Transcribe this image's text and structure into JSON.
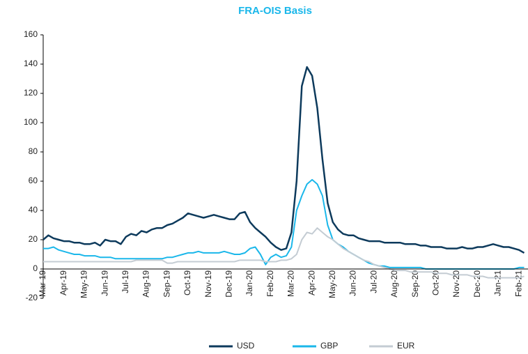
{
  "chart_data": {
    "type": "line",
    "title": "FRA-OIS Basis",
    "categories": [
      "Mar-19",
      null,
      null,
      null,
      "Apr-19",
      null,
      null,
      null,
      "May-19",
      null,
      null,
      null,
      "Jun-19",
      null,
      null,
      null,
      "Jul-19",
      null,
      null,
      null,
      "Aug-19",
      null,
      null,
      null,
      "Sep-19",
      null,
      null,
      null,
      "Oct-19",
      null,
      null,
      null,
      "Nov-19",
      null,
      null,
      null,
      "Dec-19",
      null,
      null,
      null,
      "Jan-20",
      null,
      null,
      null,
      "Feb-20",
      null,
      null,
      null,
      "Mar-20",
      null,
      null,
      null,
      "Apr-20",
      null,
      null,
      null,
      "May-20",
      null,
      null,
      null,
      "Jun-20",
      null,
      null,
      null,
      "Jul-20",
      null,
      null,
      null,
      "Aug-20",
      null,
      null,
      null,
      "Sep-20",
      null,
      null,
      null,
      "Oct-20",
      null,
      null,
      null,
      "Nov-20",
      null,
      null,
      null,
      "Dec-20",
      null,
      null,
      null,
      "Jan-21",
      null,
      null,
      null,
      "Feb-21",
      null
    ],
    "series": [
      {
        "name": "USD",
        "color": "#0d3a5c",
        "values": [
          20,
          23,
          21,
          20,
          19,
          19,
          18,
          18,
          17,
          17,
          18,
          16,
          20,
          19,
          19,
          17,
          22,
          24,
          23,
          26,
          25,
          27,
          28,
          28,
          30,
          31,
          33,
          35,
          38,
          37,
          36,
          35,
          36,
          37,
          36,
          35,
          34,
          34,
          38,
          39,
          32,
          28,
          25,
          22,
          18,
          15,
          13,
          14,
          25,
          60,
          125,
          138,
          132,
          110,
          75,
          45,
          32,
          27,
          24,
          23,
          23,
          21,
          20,
          19,
          19,
          19,
          18,
          18,
          18,
          18,
          17,
          17,
          17,
          16,
          16,
          15,
          15,
          15,
          14,
          14,
          14,
          15,
          14,
          14,
          15,
          15,
          16,
          17,
          16,
          15,
          15,
          14,
          13,
          11
        ]
      },
      {
        "name": "GBP",
        "color": "#1ab7ea",
        "values": [
          14,
          14,
          15,
          13,
          12,
          11,
          10,
          10,
          9,
          9,
          9,
          8,
          8,
          8,
          7,
          7,
          7,
          7,
          7,
          7,
          7,
          7,
          7,
          7,
          8,
          8,
          9,
          10,
          11,
          11,
          12,
          11,
          11,
          11,
          11,
          12,
          11,
          10,
          10,
          11,
          14,
          15,
          10,
          3,
          8,
          10,
          8,
          9,
          15,
          40,
          50,
          58,
          61,
          58,
          50,
          30,
          20,
          17,
          15,
          12,
          10,
          8,
          6,
          4,
          3,
          2,
          2,
          1,
          1,
          1,
          1,
          1,
          1,
          1,
          0,
          0,
          0,
          0,
          0,
          0,
          0,
          0,
          0,
          0,
          0,
          0,
          0,
          0,
          0,
          0,
          0,
          0,
          1,
          1
        ]
      },
      {
        "name": "EUR",
        "color": "#c4ccd3",
        "values": [
          5,
          5,
          5,
          5,
          5,
          5,
          5,
          5,
          5,
          5,
          5,
          5,
          5,
          5,
          5,
          5,
          5,
          5,
          6,
          6,
          6,
          6,
          6,
          6,
          4,
          4,
          5,
          5,
          5,
          5,
          5,
          5,
          5,
          5,
          5,
          5,
          5,
          5,
          6,
          6,
          6,
          6,
          6,
          5,
          5,
          5,
          6,
          6,
          7,
          10,
          20,
          25,
          24,
          28,
          25,
          22,
          20,
          17,
          14,
          12,
          10,
          8,
          6,
          5,
          3,
          2,
          1,
          0,
          -1,
          -1,
          -1,
          -2,
          -2,
          -2,
          -2,
          -2,
          -3,
          -3,
          -3,
          -4,
          -4,
          -4,
          -4,
          -5,
          -5,
          -5,
          -6,
          -6,
          -6,
          -6,
          -6,
          -6,
          -6,
          -5
        ]
      }
    ],
    "ylim": [
      -20,
      160
    ],
    "yticks": [
      -20,
      0,
      20,
      40,
      60,
      80,
      100,
      120,
      140,
      160
    ]
  }
}
